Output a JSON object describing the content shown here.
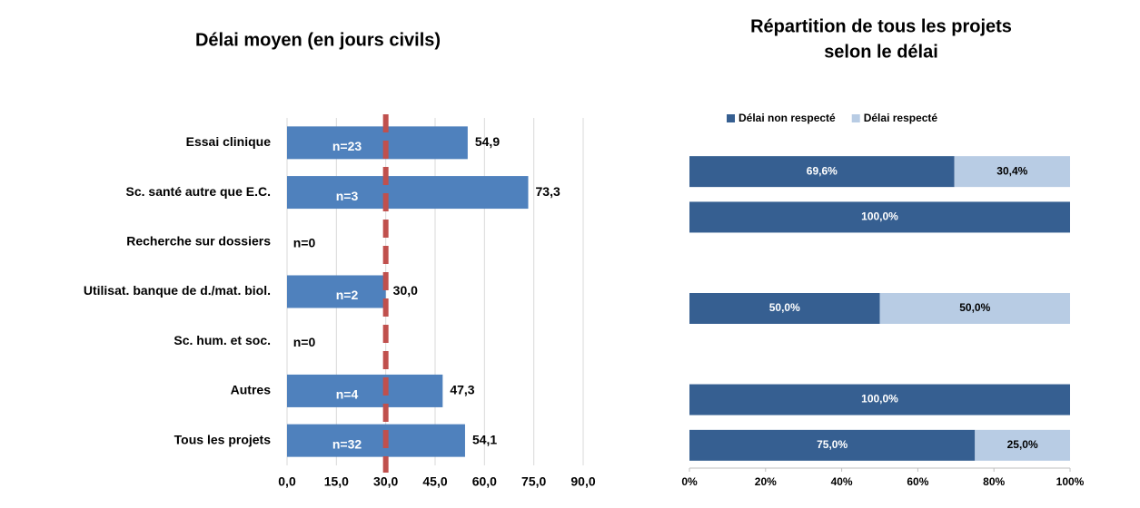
{
  "chart_data": [
    {
      "type": "hbar",
      "title": "Délai moyen (en jours civils)",
      "categories": [
        "Essai clinique",
        "Sc. santé autre que E.C.",
        "Recherche sur dossiers",
        "Utilisat. banque de d./mat. biol.",
        "Sc. hum. et soc.",
        "Autres",
        "Tous les projets"
      ],
      "values": [
        54.9,
        73.3,
        null,
        30.0,
        null,
        47.3,
        54.1
      ],
      "value_labels": [
        "54,9",
        "73,3",
        null,
        "30,0",
        null,
        "47,3",
        "54,1"
      ],
      "bar_labels": [
        "n=23",
        "n=3",
        "n=0",
        "n=2",
        "n=0",
        "n=4",
        "n=32"
      ],
      "color": "#4f81bd",
      "xlim": [
        0,
        90
      ],
      "xticks": [
        {
          "value": 0,
          "label": "0,0"
        },
        {
          "value": 15,
          "label": "15,0"
        },
        {
          "value": 30,
          "label": "30,0"
        },
        {
          "value": 45,
          "label": "45,0"
        },
        {
          "value": 60,
          "label": "60,0"
        },
        {
          "value": 75,
          "label": "75,0"
        },
        {
          "value": 90,
          "label": "90,0"
        }
      ],
      "grid": true,
      "reference_line": {
        "value": 30,
        "color": "#c0504d"
      }
    },
    {
      "type": "stacked_hbar",
      "title": [
        "Répartition de tous les projets",
        "selon le délai"
      ],
      "series": [
        {
          "name": "Délai non respecté",
          "color": "#365f91",
          "values": [
            69.6,
            100,
            null,
            50,
            null,
            100,
            75
          ],
          "value_labels": [
            "69,6%",
            "100,0%",
            null,
            "50,0%",
            null,
            "100,0%",
            "75,0%"
          ]
        },
        {
          "name": "Délai respecté",
          "color": "#b8cce4",
          "values": [
            30.4,
            0,
            null,
            50,
            null,
            0,
            25
          ],
          "value_labels": [
            "30,4%",
            null,
            null,
            "50,0%",
            null,
            null,
            "25,0%"
          ]
        }
      ],
      "xlim": [
        0,
        100
      ],
      "xticks": [
        {
          "value": 0,
          "label": "0%"
        },
        {
          "value": 20,
          "label": "20%"
        },
        {
          "value": 40,
          "label": "40%"
        },
        {
          "value": 60,
          "label": "60%"
        },
        {
          "value": 80,
          "label": "80%"
        },
        {
          "value": 100,
          "label": "100%"
        }
      ],
      "legend": "top"
    }
  ]
}
